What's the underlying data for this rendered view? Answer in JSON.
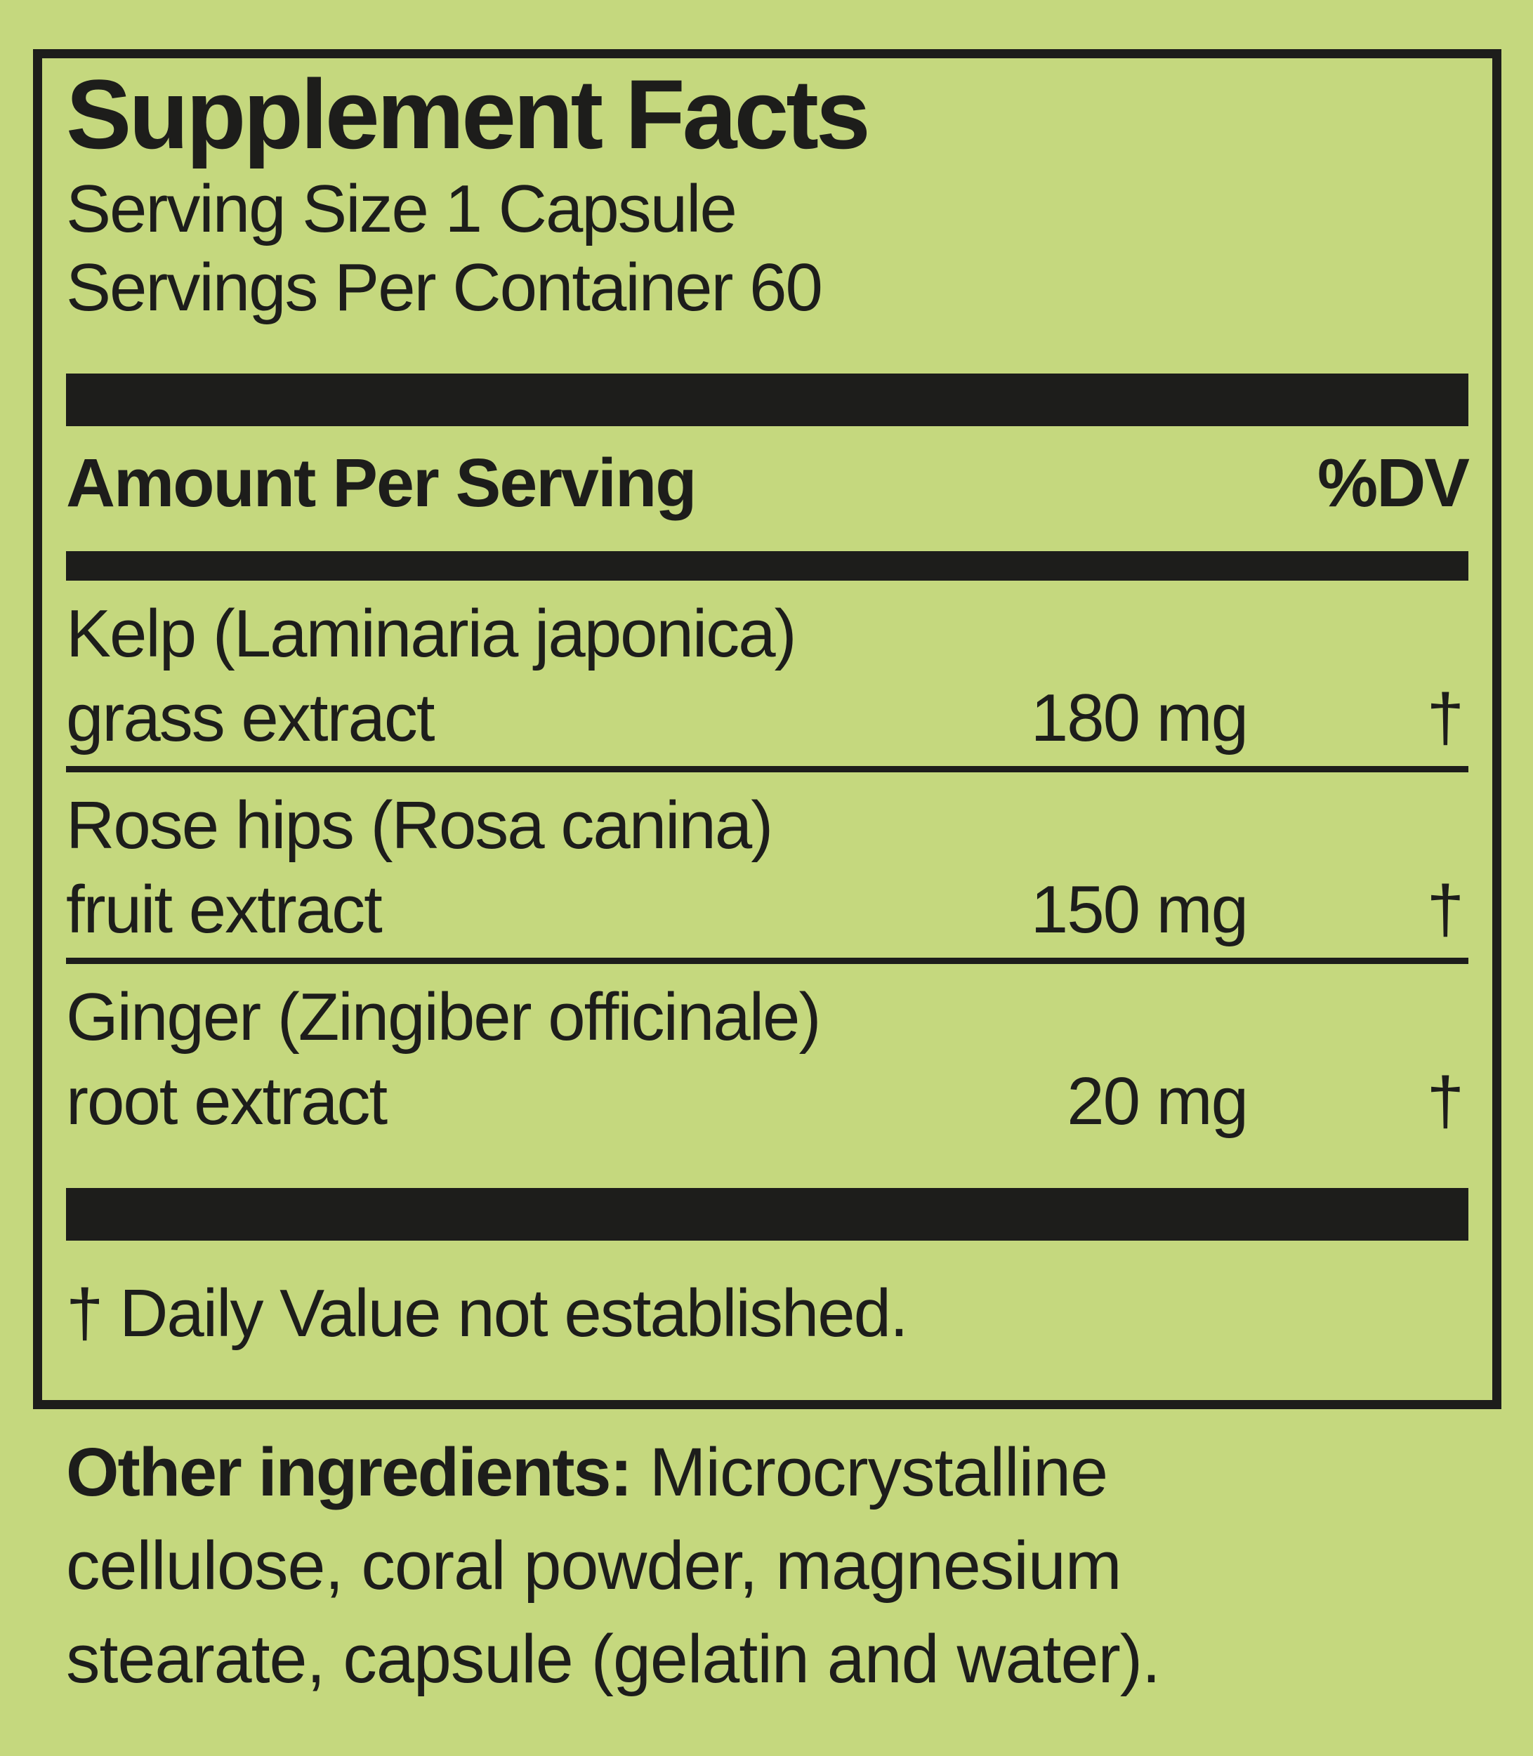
{
  "label": {
    "title": "Supplement Facts",
    "serving_size": "Serving Size 1 Capsule",
    "servings_per_container": "Servings Per Container 60",
    "columns": {
      "amount_header": "Amount Per Serving",
      "dv_header": "%DV"
    },
    "rows": [
      {
        "name_line1": "Kelp (Laminaria japonica)",
        "name_line2": "grass extract",
        "amount": "180 mg",
        "dv": "†"
      },
      {
        "name_line1": "Rose hips (Rosa canina)",
        "name_line2": "fruit extract",
        "amount": "150 mg",
        "dv": "†"
      },
      {
        "name_line1": "Ginger (Zingiber officinale)",
        "name_line2": "root extract",
        "amount": "20 mg",
        "dv": "†"
      }
    ],
    "footnote": "† Daily Value not established.",
    "other_ingredients": {
      "lead": "Other ingredients:",
      "text": " Microcrystalline cellulose, coral powder, magnesium stearate, capsule (gelatin and water)."
    },
    "colors": {
      "background": "#c5d87e",
      "text": "#1d1d1b",
      "bar": "#1d1d1b"
    }
  }
}
